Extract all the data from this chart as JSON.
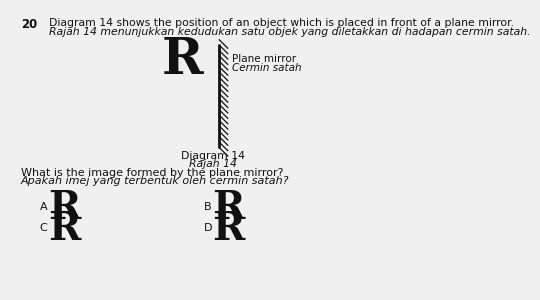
{
  "bg_color": "#f0f0f0",
  "title_number": "20",
  "line1_en": "Diagram 14 shows the position of an object which is placed in front of a plane mirror.",
  "line1_ms": "Rajah 14 menunjukkan kedudukan satu objek yang diletakkan di hadapan cermin satah.",
  "object_letter": "R",
  "mirror_label_en": "Plane mirror",
  "mirror_label_ms": "Cermin satah",
  "diagram_label_en": "Diagram 14",
  "diagram_label_ms": "Rajah 14",
  "question_en": "What is the image formed by the plane mirror?",
  "question_ms": "Apakah imej yang terbentuk oleh cermin satah?",
  "opt_A_label": "A",
  "opt_B_label": "B",
  "opt_C_label": "C",
  "opt_D_label": "D",
  "text_color": "#111111"
}
